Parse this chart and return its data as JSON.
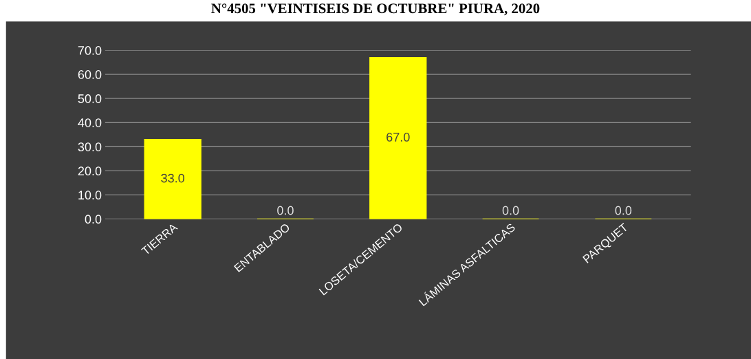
{
  "chart_data": {
    "type": "bar",
    "title": "N°4505 \"VEINTISEIS DE OCTUBRE\" PIURA, 2020",
    "categories": [
      "TIERRA",
      "ENTABLADO",
      "LOSETA/CEMENTO",
      "LÁMINAS ASFALTICAS",
      "PARQUET"
    ],
    "values": [
      33.0,
      0.0,
      67.0,
      0.0,
      0.0
    ],
    "color": "#ffff00",
    "ylim": [
      0,
      70
    ],
    "yticks": [
      {
        "value": 0,
        "label": "0.0"
      },
      {
        "value": 10,
        "label": "10.0"
      },
      {
        "value": 20,
        "label": "20.0"
      },
      {
        "value": 30,
        "label": "30.0"
      },
      {
        "value": 40,
        "label": "40.0"
      },
      {
        "value": 50,
        "label": "50.0"
      },
      {
        "value": 60,
        "label": "60.0"
      },
      {
        "value": 70,
        "label": "70.0"
      }
    ],
    "grid": "y",
    "value_labels": [
      "33.0",
      "0.0",
      "67.0",
      "0.0",
      "0.0"
    ]
  }
}
